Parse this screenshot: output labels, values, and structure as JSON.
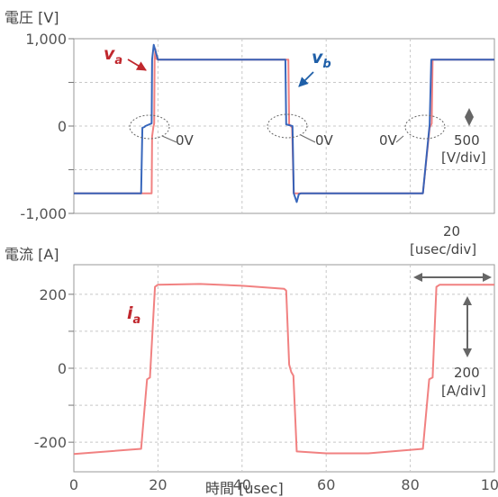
{
  "chart_data": [
    {
      "type": "line",
      "ylabel": "電圧 [V]",
      "ylim": [
        -1000,
        1000
      ],
      "yticks": [
        {
          "value": 1000,
          "label": "1,000"
        },
        {
          "value": 500,
          "label": ""
        },
        {
          "value": 0,
          "label": "0"
        },
        {
          "value": -500,
          "label": ""
        },
        {
          "value": -1000,
          "label": "-1,000"
        }
      ],
      "xlim": [
        0,
        100
      ],
      "grid": true,
      "series": [
        {
          "name": "v_a",
          "label_main": "v",
          "label_sub": "a",
          "color": "#f07a7a",
          "x": [
            0,
            18.5,
            18.6,
            18.9,
            19.1,
            19.2,
            19.4,
            19.6,
            20.0,
            51.0,
            51.2,
            51.6,
            51.9,
            52.3,
            83.0,
            84.6,
            84.9,
            85.1,
            85.3,
            86.0,
            100
          ],
          "y": [
            -770,
            -770,
            -120,
            -10,
            30,
            760,
            880,
            770,
            760,
            760,
            20,
            0,
            -20,
            -770,
            -770,
            -20,
            10,
            30,
            760,
            760,
            760
          ]
        },
        {
          "name": "v_b",
          "label_main": "v",
          "label_sub": "b",
          "color": "#2d5fb8",
          "x": [
            0,
            16.0,
            16.3,
            16.8,
            17.0,
            18.5,
            18.6,
            19.0,
            20.0,
            50.3,
            50.5,
            52.0,
            52.3,
            53.0,
            53.5,
            54.0,
            83.0,
            84.6,
            85.0,
            86.0,
            100
          ],
          "y": [
            -770,
            -770,
            -20,
            -10,
            0,
            30,
            760,
            930,
            760,
            760,
            20,
            0,
            -770,
            -870,
            -780,
            -770,
            -770,
            20,
            760,
            760,
            760
          ]
        }
      ],
      "annotations": [
        {
          "text": "0V",
          "x": 27,
          "y": -140
        },
        {
          "text": "0V",
          "x": 60,
          "y": -140
        },
        {
          "text": "0V",
          "x": 74,
          "y": -140
        },
        {
          "text": "500",
          "line2": "[V/div]",
          "x": 94,
          "y": 0
        }
      ]
    },
    {
      "type": "line",
      "ylabel": "電流 [A]",
      "xlabel": "時間 [usec]",
      "ylim": [
        -280,
        280
      ],
      "yticks": [
        {
          "value": 200,
          "label": "200"
        },
        {
          "value": 100,
          "label": ""
        },
        {
          "value": 0,
          "label": "0"
        },
        {
          "value": -100,
          "label": ""
        },
        {
          "value": -200,
          "label": "-200"
        }
      ],
      "xlim": [
        0,
        100
      ],
      "xticks": [
        0,
        20,
        40,
        60,
        80,
        100
      ],
      "grid": true,
      "series": [
        {
          "name": "i_a",
          "label_main": "i",
          "label_sub": "a",
          "color": "#f07a7a",
          "x": [
            0,
            16,
            17.4,
            18.1,
            19.3,
            20,
            30,
            40,
            50,
            50.5,
            51.2,
            51.7,
            52.2,
            53.0,
            60,
            70,
            83,
            84.5,
            85.3,
            86.2,
            87,
            100
          ],
          "y": [
            -232,
            -218,
            -30,
            -25,
            220,
            226,
            228,
            223,
            215,
            210,
            10,
            -10,
            -20,
            -225,
            -230,
            -230,
            -218,
            -30,
            -25,
            220,
            226,
            226
          ]
        }
      ],
      "annotations": [
        {
          "text": "20",
          "line2": "[usec/div]",
          "x": 90,
          "y": 260
        },
        {
          "text": "200",
          "line2": "[A/div]",
          "x": 96,
          "y": -120
        }
      ]
    }
  ]
}
